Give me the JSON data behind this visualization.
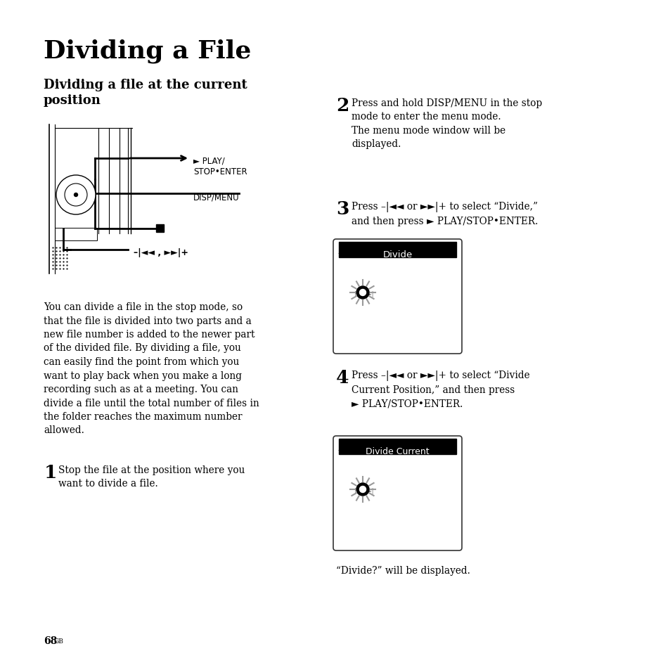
{
  "title": "Dividing a File",
  "subtitle": "Dividing a file at the current\nposition",
  "bg_color": "#ffffff",
  "text_color": "#000000",
  "page_number": "68",
  "left_body_text": "You can divide a file in the stop mode, so\nthat the file is divided into two parts and a\nnew file number is added to the newer part\nof the divided file. By dividing a file, you\ncan easily find the point from which you\nwant to play back when you make a long\nrecording such as at a meeting. You can\ndivide a file until the total number of files in\nthe folder reaches the maximum number\nallowed.",
  "step1_num": "1",
  "step1_text": "Stop the file at the position where you\nwant to divide a file.",
  "step2_num": "2",
  "step2_text": "Press and hold DISP/MENU in the stop\nmode to enter the menu mode.\nThe menu mode window will be\ndisplayed.",
  "step3_num": "3",
  "step3_text": "Press –|◄◄ or ►►|+ to select “Divide,”\nand then press ► PLAY/STOP•ENTER.",
  "step4_num": "4",
  "step4_text": "Press –|◄◄ or ►►|+ to select “Divide\nCurrent Position,” and then press\n► PLAY/STOP•ENTER.",
  "divide_label": "Divide",
  "divide_current_label": "Divide Current",
  "final_text": "“Divide?” will be displayed.",
  "play_stop_label": "► PLAY/\nSTOP•ENTER",
  "disp_menu_label": "DISP/MENU",
  "skip_label": "–|◄◄ , ►►|+"
}
